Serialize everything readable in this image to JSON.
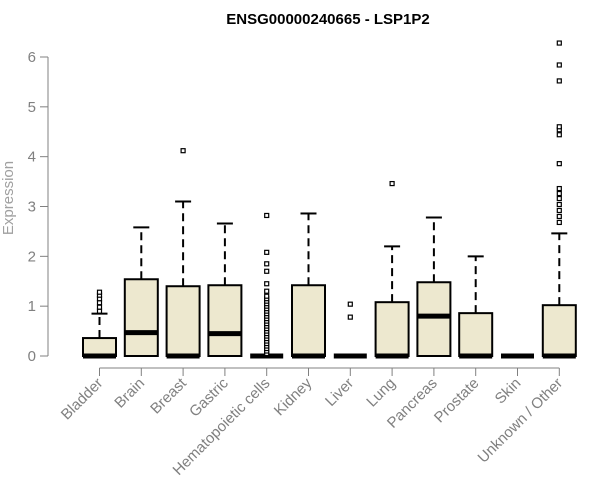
{
  "chart_data": {
    "type": "boxplot",
    "title": "ENSG00000240665 - LSP1P2",
    "xlabel": "",
    "ylabel": "Expression",
    "ylim": [
      0,
      6.3
    ],
    "yticks": [
      0,
      1,
      2,
      3,
      4,
      5,
      6
    ],
    "grid": false,
    "box_fill": "#ede8cf",
    "categories": [
      "Bladder",
      "Brain",
      "Breast",
      "Gastric",
      "Hematopoietic cells",
      "Kidney",
      "Liver",
      "Lung",
      "Pancreas",
      "Prostate",
      "Skin",
      "Unknown / Other"
    ],
    "boxes": [
      {
        "category": "Bladder",
        "min": 0,
        "q1": 0,
        "median": 0,
        "q3": 0.36,
        "max": 0.85,
        "outliers": [
          0.9,
          0.98,
          1.07,
          1.15,
          1.22,
          1.28
        ]
      },
      {
        "category": "Brain",
        "min": 0,
        "q1": 0,
        "median": 0.47,
        "q3": 1.54,
        "max": 2.58,
        "outliers": []
      },
      {
        "category": "Breast",
        "min": 0,
        "q1": 0,
        "median": 0,
        "q3": 1.4,
        "max": 3.1,
        "outliers": [
          4.12
        ]
      },
      {
        "category": "Gastric",
        "min": 0,
        "q1": 0,
        "median": 0.45,
        "q3": 1.42,
        "max": 2.66,
        "outliers": []
      },
      {
        "category": "Hematopoietic cells",
        "min": 0,
        "q1": 0,
        "median": 0,
        "q3": 0,
        "max": 0,
        "outliers": [
          0.05,
          0.1,
          0.15,
          0.2,
          0.25,
          0.3,
          0.35,
          0.4,
          0.45,
          0.5,
          0.55,
          0.6,
          0.65,
          0.7,
          0.75,
          0.8,
          0.85,
          0.9,
          0.95,
          1.0,
          1.05,
          1.1,
          1.15,
          1.2,
          1.3,
          1.45,
          1.7,
          1.85,
          2.08,
          2.82
        ]
      },
      {
        "category": "Kidney",
        "min": 0,
        "q1": 0,
        "median": 0,
        "q3": 1.42,
        "max": 2.86,
        "outliers": []
      },
      {
        "category": "Liver",
        "min": 0,
        "q1": 0,
        "median": 0,
        "q3": 0,
        "max": 0,
        "outliers": [
          0.78,
          1.04
        ]
      },
      {
        "category": "Lung",
        "min": 0,
        "q1": 0,
        "median": 0,
        "q3": 1.08,
        "max": 2.2,
        "outliers": [
          3.46
        ]
      },
      {
        "category": "Pancreas",
        "min": 0,
        "q1": 0,
        "median": 0.8,
        "q3": 1.48,
        "max": 2.78,
        "outliers": []
      },
      {
        "category": "Prostate",
        "min": 0,
        "q1": 0,
        "median": 0,
        "q3": 0.86,
        "max": 2.0,
        "outliers": []
      },
      {
        "category": "Skin",
        "min": 0,
        "q1": 0,
        "median": 0,
        "q3": 0,
        "max": 0,
        "outliers": []
      },
      {
        "category": "Unknown / Other",
        "min": 0,
        "q1": 0,
        "median": 0,
        "q3": 1.02,
        "max": 2.46,
        "outliers": [
          2.68,
          2.8,
          2.92,
          3.04,
          3.16,
          3.26,
          3.36,
          3.86,
          4.44,
          4.54,
          4.6,
          5.52,
          5.84,
          6.28
        ]
      }
    ]
  }
}
